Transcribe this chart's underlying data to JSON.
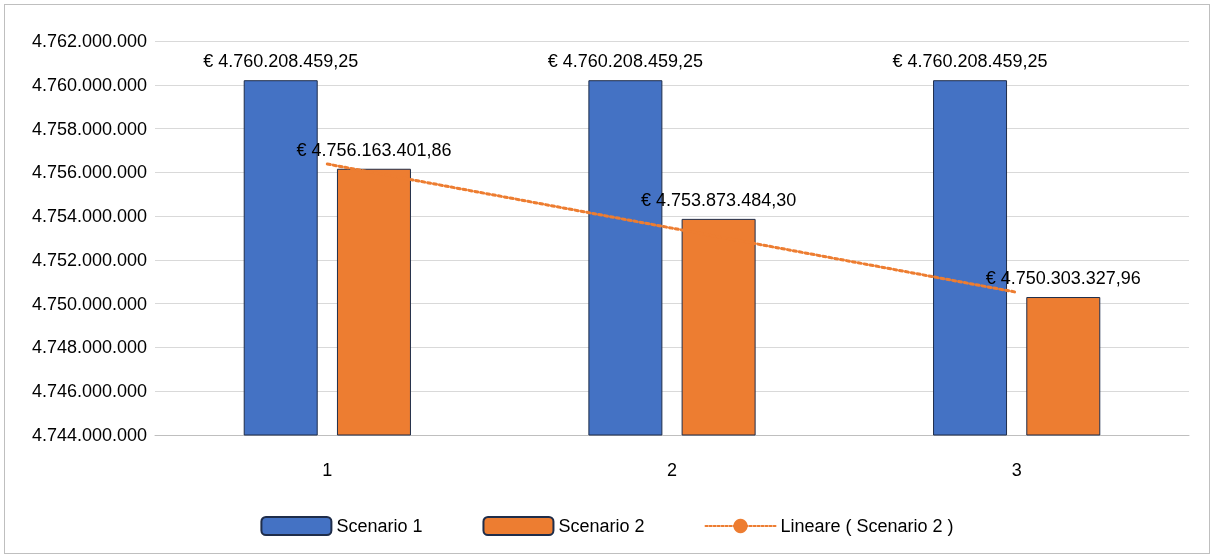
{
  "chart_data": {
    "type": "bar",
    "categories": [
      "1",
      "2",
      "3"
    ],
    "series": [
      {
        "name": "Scenario 1",
        "color": "#4472c4",
        "values": [
          4760208459.25,
          4760208459.25,
          4760208459.25
        ],
        "value_labels": [
          "€ 4.760.208.459,25",
          "€ 4.760.208.459,25",
          "€ 4.760.208.459,25"
        ]
      },
      {
        "name": "Scenario 2",
        "color": "#ed7d31",
        "values": [
          4756163401.86,
          4753873484.3,
          4750303327.96
        ],
        "value_labels": [
          "€ 4.756.163.401,86",
          "€ 4.753.873.484,30",
          "€ 4.750.303.327,96"
        ]
      },
      {
        "name": "Lineare ( Scenario 2 )",
        "type": "line",
        "color": "#ed7d31",
        "line_style": "dotted",
        "marker": "none",
        "values": [
          4756380000,
          4753450000,
          4750520000
        ]
      }
    ],
    "ylim": [
      4744000000,
      4762000000
    ],
    "yticks": [
      {
        "value": 4744000000,
        "label": "4.744.000.000"
      },
      {
        "value": 4746000000,
        "label": "4.746.000.000"
      },
      {
        "value": 4748000000,
        "label": "4.748.000.000"
      },
      {
        "value": 4750000000,
        "label": "4.750.000.000"
      },
      {
        "value": 4752000000,
        "label": "4.752.000.000"
      },
      {
        "value": 4754000000,
        "label": "4.754.000.000"
      },
      {
        "value": 4756000000,
        "label": "4.756.000.000"
      },
      {
        "value": 4758000000,
        "label": "4.758.000.000"
      },
      {
        "value": 4760000000,
        "label": "4.760.000.000"
      },
      {
        "value": 4762000000,
        "label": "4.762.000.000"
      }
    ],
    "grid": "y",
    "legend": "bottom"
  }
}
